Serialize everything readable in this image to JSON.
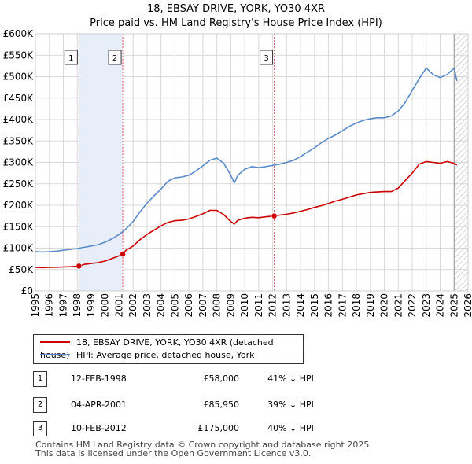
{
  "title_line1": "18, EBSAY DRIVE, YORK, YO30 4XR",
  "title_line2": "Price paid vs. HM Land Registry's House Price Index (HPI)",
  "chart_data": {
    "type": "line",
    "xlim": [
      1995,
      2026
    ],
    "ylim": [
      0,
      600000
    ],
    "x_ticks": [
      1995,
      1996,
      1997,
      1998,
      1999,
      2000,
      2001,
      2002,
      2003,
      2004,
      2005,
      2006,
      2007,
      2008,
      2009,
      2010,
      2011,
      2012,
      2013,
      2014,
      2015,
      2016,
      2017,
      2018,
      2019,
      2020,
      2021,
      2022,
      2023,
      2024,
      2025,
      2026
    ],
    "y_ticks": [
      {
        "value": 0,
        "label": "£0"
      },
      {
        "value": 50000,
        "label": "£50K"
      },
      {
        "value": 100000,
        "label": "£100K"
      },
      {
        "value": 150000,
        "label": "£150K"
      },
      {
        "value": 200000,
        "label": "£200K"
      },
      {
        "value": 250000,
        "label": "£250K"
      },
      {
        "value": 300000,
        "label": "£300K"
      },
      {
        "value": 350000,
        "label": "£350K"
      },
      {
        "value": 400000,
        "label": "£400K"
      },
      {
        "value": 450000,
        "label": "£450K"
      },
      {
        "value": 500000,
        "label": "£500K"
      },
      {
        "value": 550000,
        "label": "£550K"
      },
      {
        "value": 600000,
        "label": "£600K"
      }
    ],
    "grid": true,
    "colors": {
      "property": "#cc0000",
      "hpi": "#5b8ac9",
      "shade": "#e8eef9",
      "vline": "#e06060"
    },
    "series": [
      {
        "name": "18, EBSAY DRIVE, YORK, YO30 4XR (detached house)",
        "color": "#cc0000",
        "x": [
          1995.0,
          1995.5,
          1996.0,
          1996.5,
          1997.0,
          1997.5,
          1998.12,
          1998.5,
          1999.0,
          1999.5,
          2000.0,
          2000.5,
          2001.0,
          2001.26,
          2001.5,
          2002.0,
          2002.5,
          2003.0,
          2003.5,
          2004.0,
          2004.5,
          2005.0,
          2005.5,
          2006.0,
          2006.5,
          2007.0,
          2007.5,
          2008.0,
          2008.5,
          2009.0,
          2009.25,
          2009.5,
          2010.0,
          2010.5,
          2011.0,
          2011.5,
          2012.11,
          2012.5,
          2013.0,
          2013.5,
          2014.0,
          2014.5,
          2015.0,
          2015.5,
          2016.0,
          2016.5,
          2017.0,
          2017.5,
          2018.0,
          2018.5,
          2019.0,
          2019.5,
          2020.0,
          2020.5,
          2021.0,
          2021.5,
          2022.0,
          2022.5,
          2023.0,
          2023.5,
          2024.0,
          2024.5,
          2025.0,
          2025.2
        ],
        "y": [
          55000,
          54500,
          55000,
          55500,
          56000,
          56500,
          58000,
          62000,
          64000,
          66000,
          70000,
          76000,
          82000,
          85950,
          95000,
          105000,
          120000,
          132000,
          142000,
          152000,
          160000,
          164000,
          165000,
          168000,
          174000,
          180000,
          188000,
          188000,
          178000,
          162000,
          156000,
          165000,
          170000,
          172000,
          171000,
          173000,
          175000,
          177000,
          179000,
          182000,
          186000,
          190000,
          195000,
          199000,
          204000,
          210000,
          214000,
          219000,
          224000,
          227000,
          230000,
          231000,
          232000,
          232000,
          240000,
          258000,
          275000,
          296000,
          302000,
          300000,
          298000,
          302000,
          298000,
          294000
        ]
      },
      {
        "name": "HPI: Average price, detached house, York",
        "color": "#5b8ac9",
        "x": [
          1995.0,
          1995.5,
          1996.0,
          1996.5,
          1997.0,
          1997.5,
          1998.0,
          1998.5,
          1999.0,
          1999.5,
          2000.0,
          2000.5,
          2001.0,
          2001.5,
          2002.0,
          2002.5,
          2003.0,
          2003.5,
          2004.0,
          2004.5,
          2005.0,
          2005.5,
          2006.0,
          2006.5,
          2007.0,
          2007.5,
          2008.0,
          2008.5,
          2009.0,
          2009.25,
          2009.5,
          2010.0,
          2010.5,
          2011.0,
          2011.5,
          2012.0,
          2012.5,
          2013.0,
          2013.5,
          2014.0,
          2014.5,
          2015.0,
          2015.5,
          2016.0,
          2016.5,
          2017.0,
          2017.5,
          2018.0,
          2018.5,
          2019.0,
          2019.5,
          2020.0,
          2020.5,
          2021.0,
          2021.5,
          2022.0,
          2022.5,
          2023.0,
          2023.5,
          2024.0,
          2024.5,
          2025.0,
          2025.2
        ],
        "y": [
          92000,
          91000,
          91500,
          93000,
          95000,
          97000,
          99000,
          102000,
          105000,
          108000,
          114000,
          122000,
          132000,
          145000,
          162000,
          185000,
          205000,
          222000,
          238000,
          256000,
          264000,
          266000,
          270000,
          280000,
          292000,
          305000,
          310000,
          298000,
          270000,
          252000,
          270000,
          284000,
          290000,
          288000,
          290000,
          293000,
          296000,
          300000,
          305000,
          314000,
          324000,
          334000,
          346000,
          356000,
          364000,
          374000,
          384000,
          392000,
          398000,
          402000,
          404000,
          404000,
          408000,
          420000,
          440000,
          468000,
          495000,
          520000,
          505000,
          498000,
          505000,
          520000,
          490000
        ]
      }
    ],
    "sales": [
      {
        "label": "1",
        "x": 1998.12,
        "y": 58000
      },
      {
        "label": "2",
        "x": 2001.26,
        "y": 85950
      },
      {
        "label": "3",
        "x": 2012.11,
        "y": 175000
      }
    ],
    "shaded_spans": [
      [
        1998.12,
        2001.26
      ]
    ],
    "hatch_start": 2025.0
  },
  "legend": {
    "property_label": "18, EBSAY DRIVE, YORK, YO30 4XR (detached house)",
    "hpi_label": "HPI: Average price, detached house, York"
  },
  "transactions": [
    {
      "num": "1",
      "date": "12-FEB-1998",
      "price": "£58,000",
      "hpi": "41% ↓ HPI"
    },
    {
      "num": "2",
      "date": "04-APR-2001",
      "price": "£85,950",
      "hpi": "39% ↓ HPI"
    },
    {
      "num": "3",
      "date": "10-FEB-2012",
      "price": "£175,000",
      "hpi": "40% ↓ HPI"
    }
  ],
  "footer_line1": "Contains HM Land Registry data © Crown copyright and database right 2025.",
  "footer_line2": "This data is licensed under the Open Government Licence v3.0."
}
